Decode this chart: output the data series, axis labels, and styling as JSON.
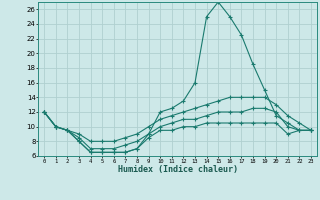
{
  "title": "",
  "xlabel": "Humidex (Indice chaleur)",
  "ylabel": "",
  "background_color": "#cde8e8",
  "grid_color": "#b0d0d0",
  "line_color": "#1a7a6e",
  "xlim": [
    -0.5,
    23.5
  ],
  "ylim": [
    6,
    27
  ],
  "yticks": [
    6,
    8,
    10,
    12,
    14,
    16,
    18,
    20,
    22,
    24,
    26
  ],
  "xticks": [
    0,
    1,
    2,
    3,
    4,
    5,
    6,
    7,
    8,
    9,
    10,
    11,
    12,
    13,
    14,
    15,
    16,
    17,
    18,
    19,
    20,
    21,
    22,
    23
  ],
  "line1_y": [
    12,
    10,
    9.5,
    8,
    6.5,
    6.5,
    6.5,
    6.5,
    7,
    9,
    12,
    12.5,
    13.5,
    16,
    25,
    27,
    25,
    22.5,
    18.5,
    15,
    11.5,
    10.5,
    9.5,
    9.5
  ],
  "line2_y": [
    12,
    10,
    9.5,
    9,
    8,
    8,
    8,
    8.5,
    9,
    10,
    11,
    11.5,
    12,
    12.5,
    13,
    13.5,
    14,
    14,
    14,
    14,
    13,
    11.5,
    10.5,
    9.5
  ],
  "line3_y": [
    12,
    10,
    9.5,
    8.5,
    7,
    7,
    7,
    7.5,
    8,
    9,
    10,
    10.5,
    11,
    11,
    11.5,
    12,
    12,
    12,
    12.5,
    12.5,
    12,
    10,
    9.5,
    9.5
  ],
  "line4_y": [
    12,
    10,
    9.5,
    8,
    6.5,
    6.5,
    6.5,
    6.5,
    7,
    8.5,
    9.5,
    9.5,
    10,
    10,
    10.5,
    10.5,
    10.5,
    10.5,
    10.5,
    10.5,
    10.5,
    9,
    9.5,
    9.5
  ]
}
